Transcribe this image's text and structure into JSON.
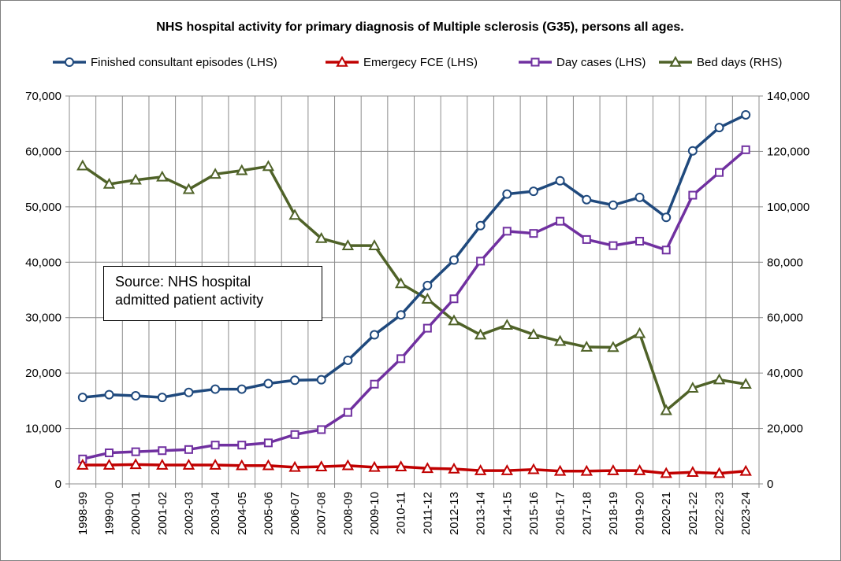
{
  "chart_data": {
    "type": "line",
    "title": "NHS hospital activity for primary diagnosis of Multiple sclerosis (G35), persons all ages.",
    "categories": [
      "1998-99",
      "1999-00",
      "2000-01",
      "2001-02",
      "2002-03",
      "2003-04",
      "2004-05",
      "2005-06",
      "2006-07",
      "2007-08",
      "2008-09",
      "2009-10",
      "2010-11",
      "2011-12",
      "2012-13",
      "2013-14",
      "2014-15",
      "2015-16",
      "2016-17",
      "2017-18",
      "2018-19",
      "2019-20",
      "2020-21",
      "2021-22",
      "2022-23",
      "2023-24"
    ],
    "y_left": {
      "min": 0,
      "max": 70000,
      "step": 10000,
      "ticks": [
        "0",
        "10,000",
        "20,000",
        "30,000",
        "40,000",
        "50,000",
        "60,000",
        "70,000"
      ]
    },
    "y_right": {
      "min": 0,
      "max": 140000,
      "step": 20000,
      "ticks": [
        "0",
        "20,000",
        "40,000",
        "60,000",
        "80,000",
        "100,000",
        "120,000",
        "140,000"
      ]
    },
    "grid": true,
    "legend_placement": "top",
    "series": [
      {
        "name": "Finished consultant episodes (LHS)",
        "axis": "left",
        "marker": "circle",
        "color": "#1f497d",
        "values": [
          15600,
          16100,
          15900,
          15600,
          16500,
          17100,
          17100,
          18100,
          18700,
          18800,
          22300,
          26900,
          30500,
          35800,
          40400,
          46600,
          52300,
          52800,
          54700,
          51300,
          50300,
          51700,
          48100,
          60100,
          64300,
          66600
        ]
      },
      {
        "name": "Emergecy FCE (LHS)",
        "axis": "left",
        "marker": "triangle",
        "color": "#c00000",
        "values": [
          3400,
          3400,
          3500,
          3400,
          3400,
          3400,
          3300,
          3300,
          3000,
          3100,
          3300,
          3000,
          3100,
          2800,
          2700,
          2400,
          2400,
          2600,
          2300,
          2300,
          2400,
          2400,
          1900,
          2100,
          1900,
          2300
        ]
      },
      {
        "name": "Day cases (LHS)",
        "axis": "left",
        "marker": "square",
        "color": "#7030a0",
        "values": [
          4500,
          5600,
          5800,
          6000,
          6200,
          7000,
          7000,
          7400,
          8900,
          9800,
          12900,
          18000,
          22600,
          28100,
          33400,
          40200,
          45600,
          45200,
          47400,
          44100,
          43000,
          43800,
          42200,
          52100,
          56200,
          60300
        ]
      },
      {
        "name": "Bed days (RHS)",
        "axis": "right",
        "marker": "triangle",
        "color": "#4f6228",
        "values": [
          114800,
          108200,
          109700,
          110800,
          106300,
          111800,
          113100,
          114600,
          97000,
          88600,
          86000,
          86000,
          72300,
          66700,
          58900,
          53800,
          57300,
          53900,
          51500,
          49400,
          49300,
          54300,
          26500,
          34600,
          37600,
          36000
        ]
      }
    ],
    "annotation": [
      "Source: NHS hospital",
      "admitted patient activity"
    ]
  }
}
